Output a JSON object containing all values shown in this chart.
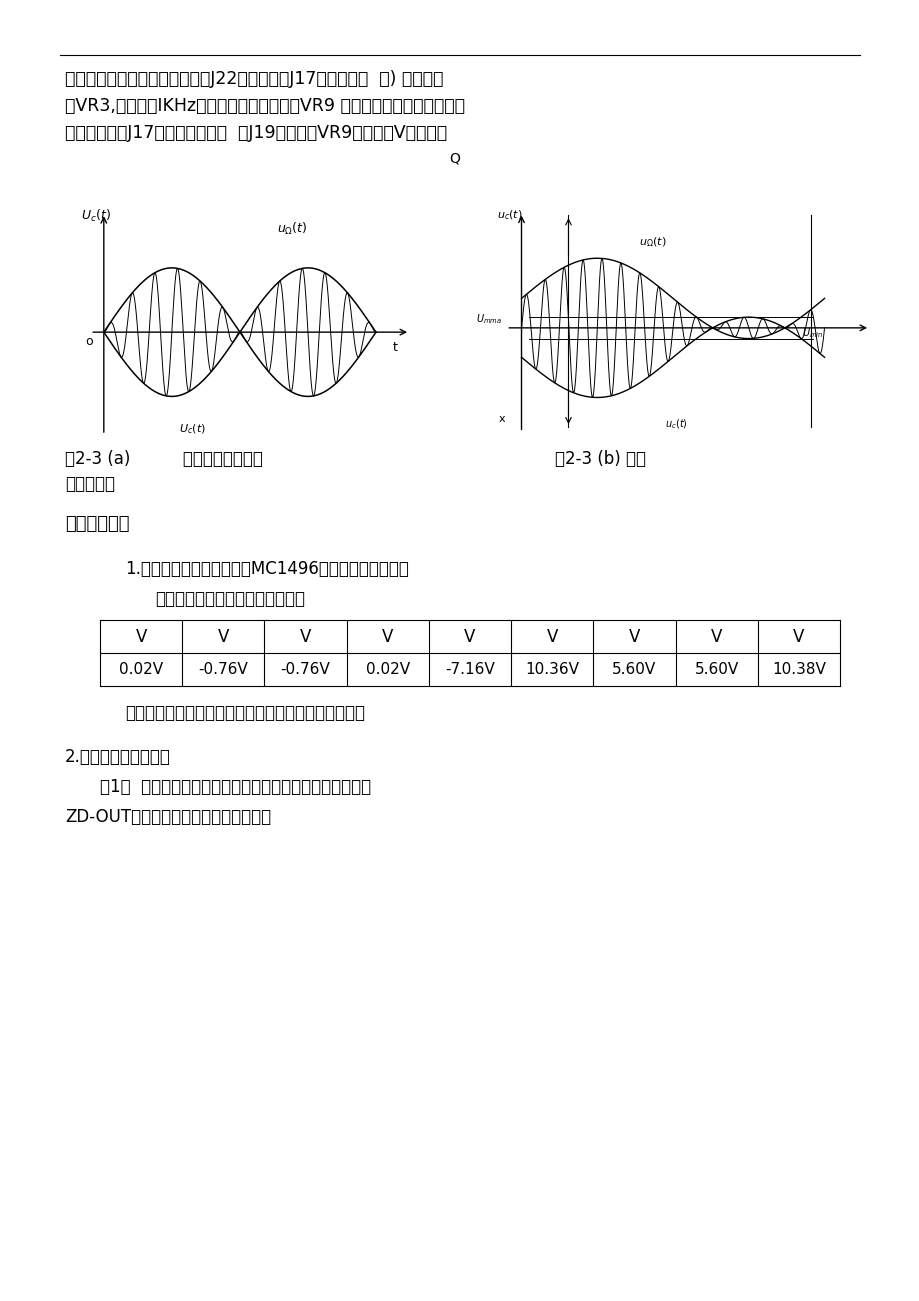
{
  "page_top_text": [
    "上的低频信号源。将示波器接入J22处，（此时J17短路块应断  开) 调节电位",
    "器VR3,使其输出IKHz信号不失真信号，改变VR9 可以改变输出信号幅度的大",
    "小。将短路块J17短接，示波器接  入J19处，调节VR9改变输入V的大小。"
  ],
  "q_label": "Q",
  "fig_caption_a": "图2-3 (a)          抑制载波调幅波形",
  "fig_caption_b": "图2-3 (b) 普通",
  "fig_caption_b2": "调幅波波形",
  "section5": "五、实验记录",
  "item1_text": "1.整理实验数据，写出实测MC1496各引脚的实测数据。",
  "item1_sub": "静态工作点调测，实验测得结果：",
  "table_header": [
    "V",
    "V",
    "V",
    "V",
    "V",
    "V",
    "V",
    "V",
    "V"
  ],
  "table_data": [
    "0.02V",
    "-0.76V",
    "-0.76V",
    "0.02V",
    "-7.16V",
    "10.36V",
    "5.60V",
    "5.60V",
    "10.38V"
  ],
  "item1_comment": "经比对，各引脚偏置电压接近参考值，测试结果正常。",
  "item2_text": "2.调幅实验调幅波形：",
  "item2_sub1": "（1）  先观察生成载波的波形，在振荡器与频率调制模块的",
  "item2_sub2": "ZD-OUT上用示波器观察载波输出波形："
}
